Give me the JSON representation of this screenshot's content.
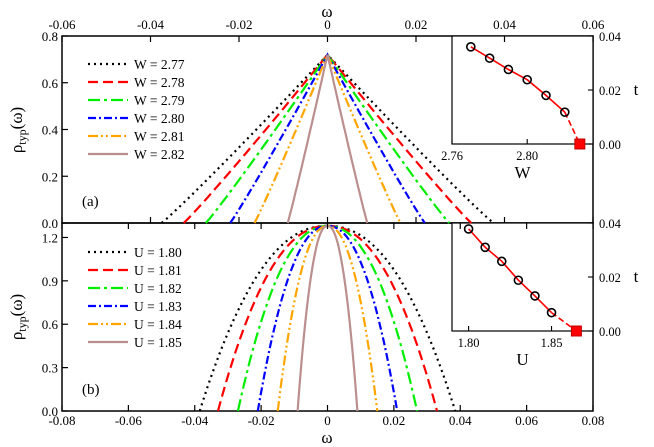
{
  "figure": {
    "top_axis_label": "ω",
    "bottom_axis_label": "ω",
    "y_axis_label": {
      "main": "ρ",
      "sub": "typ",
      "suffix": "(ω)"
    },
    "colors": [
      "#000000",
      "#ff0000",
      "#00ee00",
      "#0000ff",
      "#ffa500",
      "#bc8f8f"
    ],
    "dashes": [
      "2,4",
      "10,5",
      "12,4,3,4",
      "8,3,2,3",
      "10,3,2,3,2,3",
      ""
    ]
  },
  "chart_data": [
    {
      "type": "line",
      "panel_label": "(a)",
      "x_axis": "top",
      "xlabel": "ω",
      "ylabel": "ρtyp(ω)",
      "xlim": [
        -0.06,
        0.06
      ],
      "ylim": [
        0,
        0.8
      ],
      "xticks": [
        -0.06,
        -0.04,
        -0.02,
        0.0,
        0.02,
        0.04,
        0.06
      ],
      "xtick_labels": [
        "-0.06",
        "-0.04",
        "-0.02",
        "0",
        "0.02",
        "0.04",
        "0.06"
      ],
      "yticks": [
        0.0,
        0.2,
        0.4,
        0.6,
        0.8
      ],
      "ytick_labels": [
        "0.0",
        "0.2",
        "0.4",
        "0.6",
        "0.8"
      ],
      "peak": 0.72,
      "shape": "triangular",
      "series": [
        {
          "name": "W = 2.77",
          "half_width": 0.0375
        },
        {
          "name": "W = 2.78",
          "half_width": 0.0325
        },
        {
          "name": "W = 2.79",
          "half_width": 0.0275
        },
        {
          "name": "W = 2.80",
          "half_width": 0.022
        },
        {
          "name": "W = 2.81",
          "half_width": 0.0165
        },
        {
          "name": "W = 2.82",
          "half_width": 0.009
        }
      ],
      "inset": {
        "xlabel": "W",
        "ylabel": "t",
        "xlim": [
          2.76,
          2.835
        ],
        "ylim": [
          0,
          0.04
        ],
        "xticks": [
          2.76,
          2.8
        ],
        "xtick_labels": [
          "2.76",
          "2.80"
        ],
        "yticks": [
          0.0,
          0.02,
          0.04
        ],
        "ytick_labels": [
          "0.00",
          "0.02",
          "0.04"
        ],
        "points": [
          {
            "x": 2.77,
            "y": 0.036
          },
          {
            "x": 2.78,
            "y": 0.0318
          },
          {
            "x": 2.79,
            "y": 0.0276
          },
          {
            "x": 2.8,
            "y": 0.0238
          },
          {
            "x": 2.81,
            "y": 0.018
          },
          {
            "x": 2.82,
            "y": 0.0118
          }
        ],
        "critical_point": {
          "x": 2.828,
          "y": 0.0
        }
      }
    },
    {
      "type": "line",
      "panel_label": "(b)",
      "x_axis": "bottom",
      "xlabel": "ω",
      "ylabel": "ρtyp(ω)",
      "xlim": [
        -0.08,
        0.08
      ],
      "ylim": [
        0,
        1.3
      ],
      "xticks": [
        -0.08,
        -0.06,
        -0.04,
        -0.02,
        0.0,
        0.02,
        0.04,
        0.06,
        0.08
      ],
      "xtick_labels": [
        "-0.08",
        "-0.06",
        "-0.04",
        "-0.02",
        "0",
        "0.02",
        "0.04",
        "0.06",
        "0.08"
      ],
      "yticks": [
        0.0,
        0.3,
        0.6,
        0.9,
        1.2
      ],
      "ytick_labels": [
        "0.0",
        "0.3",
        "0.6",
        "0.9",
        "1.2"
      ],
      "peak": 1.28,
      "shape": "parabolic",
      "series": [
        {
          "name": "U = 1.80",
          "half_width": 0.0385
        },
        {
          "name": "U = 1.81",
          "half_width": 0.033
        },
        {
          "name": "U = 1.82",
          "half_width": 0.027
        },
        {
          "name": "U = 1.83",
          "half_width": 0.021
        },
        {
          "name": "U = 1.84",
          "half_width": 0.015
        },
        {
          "name": "U = 1.85",
          "half_width": 0.009
        }
      ],
      "inset": {
        "xlabel": "U",
        "ylabel": "t",
        "xlim": [
          1.79,
          1.875
        ],
        "ylim": [
          0,
          0.04
        ],
        "xticks": [
          1.8,
          1.85
        ],
        "xtick_labels": [
          "1.80",
          "1.85"
        ],
        "yticks": [
          0.0,
          0.02,
          0.04
        ],
        "ytick_labels": [
          "0.00",
          "0.02",
          "0.04"
        ],
        "points": [
          {
            "x": 1.8,
            "y": 0.0378
          },
          {
            "x": 1.81,
            "y": 0.031
          },
          {
            "x": 1.82,
            "y": 0.0258
          },
          {
            "x": 1.83,
            "y": 0.0188
          },
          {
            "x": 1.84,
            "y": 0.013
          },
          {
            "x": 1.85,
            "y": 0.0068
          }
        ],
        "critical_point": {
          "x": 1.865,
          "y": 0.0
        }
      }
    }
  ]
}
